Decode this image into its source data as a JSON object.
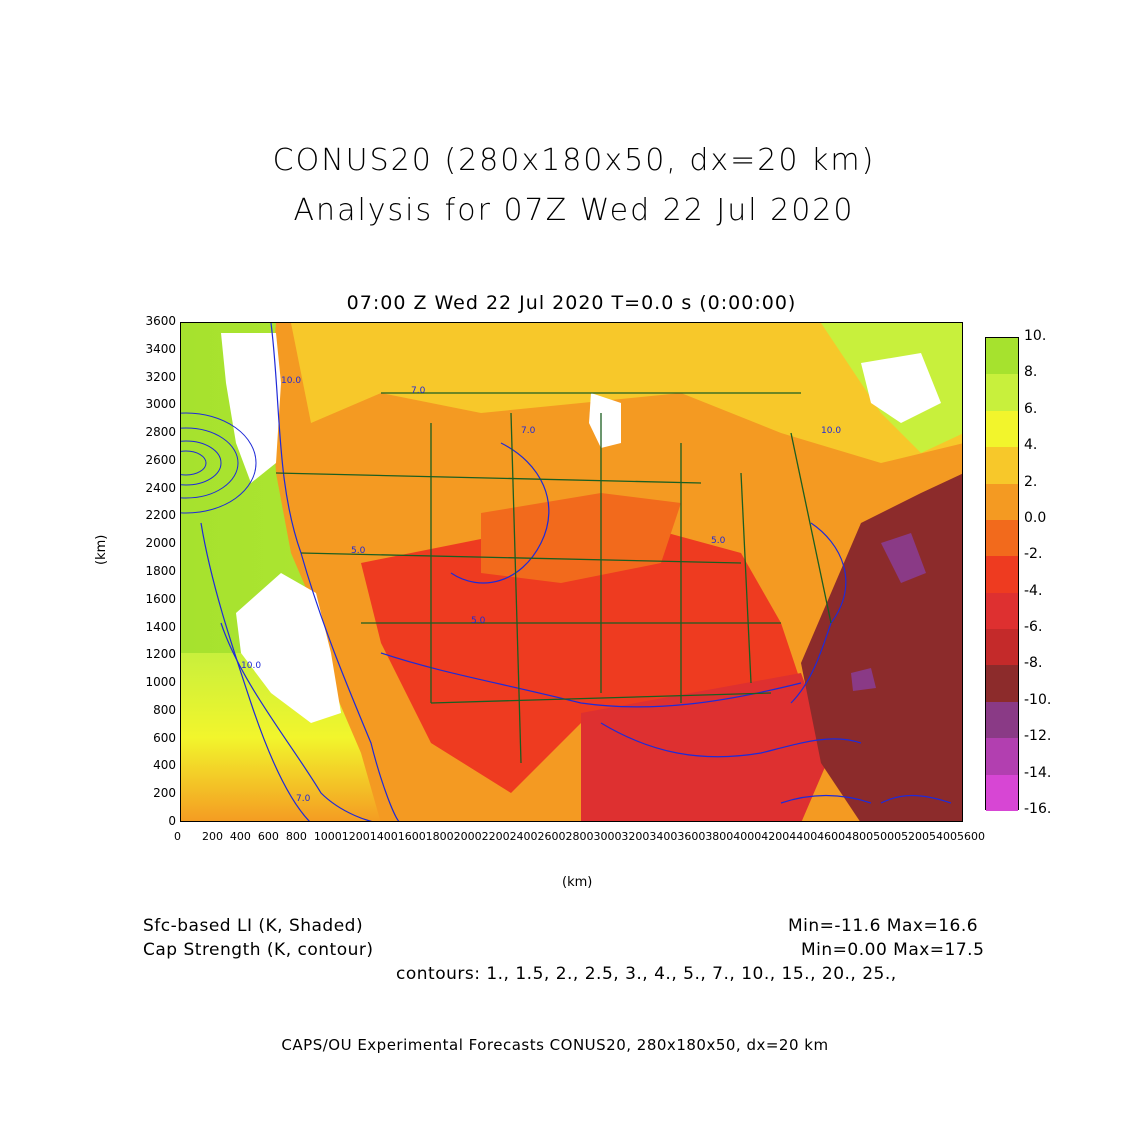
{
  "title": {
    "line1": "CONUS20 (280x180x50, dx=20 km)",
    "line2": "Analysis for 07Z Wed 22 Jul 2020"
  },
  "subtitle": "07:00 Z Wed 22 Jul 2020   T=0.0 s (0:00:00)",
  "axes": {
    "xlabel": "(km)",
    "ylabel": "(km)",
    "xticks": [
      0,
      200,
      400,
      600,
      800,
      1000,
      1200,
      1400,
      1600,
      1800,
      2000,
      2200,
      2400,
      2600,
      2800,
      3000,
      3200,
      3400,
      3600,
      3800,
      4000,
      4200,
      4400,
      4600,
      4800,
      5000,
      5200,
      5400,
      5600
    ],
    "yticks": [
      0,
      200,
      400,
      600,
      800,
      1000,
      1200,
      1400,
      1600,
      1800,
      2000,
      2200,
      2400,
      2600,
      2800,
      3000,
      3200,
      3400,
      3600
    ],
    "xlim": [
      0,
      5600
    ],
    "ylim": [
      0,
      3600
    ]
  },
  "colorbar": {
    "labels": [
      "10.",
      "8.",
      "6.",
      "4.",
      "2.",
      "0.0",
      "-2.",
      "-4.",
      "-6.",
      "-8.",
      "-10.",
      "-12.",
      "-14.",
      "-16."
    ],
    "colors": [
      "#a6e22e",
      "#c8f03c",
      "#f2f52c",
      "#f7c82a",
      "#f49a22",
      "#f26a1c",
      "#ee3b20",
      "#de3030",
      "#c42a2a",
      "#8c2b2b",
      "#8a3a86",
      "#b23fb0",
      "#d746d4"
    ]
  },
  "info": {
    "li_label": "Sfc-based LI (K, Shaded)",
    "li_range": "Min=-11.6 Max=16.6",
    "cap_label": "Cap Strength (K, contour)",
    "cap_range": "Min=0.00 Max=17.5",
    "contours": "contours: 1., 1.5, 2., 2.5, 3., 4., 5., 7., 10., 15., 20., 25.,"
  },
  "footer": "CAPS/OU Experimental Forecasts  CONUS20, 280x180x50, dx=20 km",
  "map_labels": [
    "10.0",
    "7.0",
    "5.0",
    "10.0",
    "5.0",
    "5.0",
    "7.0",
    "10.0",
    "7.0"
  ]
}
